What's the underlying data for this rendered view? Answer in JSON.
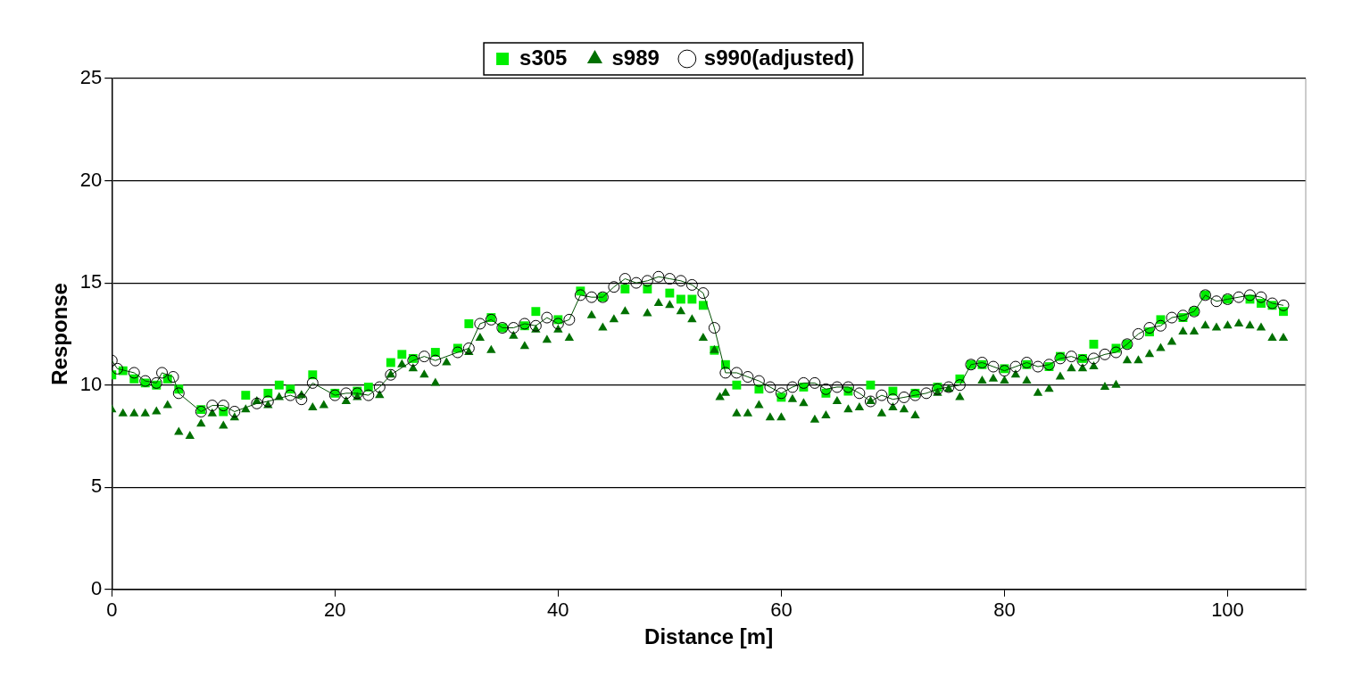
{
  "chart_data": {
    "type": "scatter",
    "xlabel": "Distance [m]",
    "ylabel": "Response",
    "xlim": [
      0,
      107
    ],
    "xticks": [
      0,
      20,
      40,
      60,
      80,
      100
    ],
    "ylim": [
      0,
      25
    ],
    "yticks": [
      0,
      5,
      10,
      15,
      20,
      25
    ],
    "grid": "y",
    "legend": "top",
    "series": [
      {
        "name": "s305",
        "marker": "square",
        "color": "#00ee00",
        "x": [
          0,
          1,
          2,
          3,
          4,
          5,
          6,
          8,
          10,
          12,
          14,
          15,
          16,
          18,
          20,
          22,
          23,
          25,
          26,
          27,
          29,
          31,
          32,
          34,
          35,
          37,
          38,
          40,
          42,
          44,
          46,
          48,
          50,
          51,
          52,
          53,
          54,
          55,
          56,
          58,
          60,
          62,
          64,
          66,
          68,
          70,
          72,
          74,
          76,
          77,
          78,
          80,
          82,
          84,
          85,
          87,
          88,
          90,
          91,
          93,
          94,
          96,
          97,
          98,
          100,
          102,
          103,
          104,
          105
        ],
        "values": [
          10.5,
          10.7,
          10.3,
          10.1,
          10.0,
          10.3,
          9.8,
          8.8,
          8.7,
          9.5,
          9.6,
          10.0,
          9.8,
          10.5,
          9.6,
          9.7,
          9.9,
          11.1,
          11.5,
          11.3,
          11.6,
          11.8,
          13.0,
          13.3,
          12.8,
          12.9,
          13.6,
          13.2,
          14.6,
          14.3,
          14.7,
          14.7,
          14.5,
          14.2,
          14.2,
          13.9,
          11.7,
          11.0,
          10.0,
          9.8,
          9.4,
          9.9,
          9.6,
          9.7,
          10.0,
          9.7,
          9.6,
          9.9,
          10.3,
          11.0,
          11.0,
          10.8,
          11.0,
          10.9,
          11.4,
          11.3,
          12.0,
          11.8,
          12.0,
          12.6,
          13.2,
          13.3,
          13.6,
          14.4,
          14.2,
          14.2,
          14.0,
          13.9,
          13.6
        ]
      },
      {
        "name": "s989",
        "marker": "triangle",
        "color": "#007000",
        "x": [
          0,
          1,
          2,
          3,
          4,
          5,
          6,
          7,
          8,
          9,
          10,
          11,
          12,
          13,
          14,
          15,
          17,
          18,
          19,
          21,
          22,
          24,
          25,
          26,
          27,
          28,
          29,
          30,
          32,
          33,
          34,
          36,
          37,
          38,
          39,
          40,
          41,
          43,
          44,
          45,
          46,
          48,
          49,
          50,
          51,
          52,
          53,
          54,
          54.5,
          55,
          56,
          57,
          58,
          59,
          60,
          61,
          62,
          63,
          64,
          65,
          66,
          67,
          68,
          69,
          70,
          71,
          72,
          74,
          75,
          76,
          78,
          79,
          80,
          81,
          82,
          83,
          84,
          85,
          86,
          87,
          88,
          89,
          90,
          91,
          92,
          93,
          94,
          95,
          96,
          97,
          98,
          99,
          100,
          101,
          102,
          103,
          104,
          105
        ],
        "values": [
          8.8,
          8.6,
          8.6,
          8.6,
          8.7,
          9.0,
          7.7,
          7.5,
          8.1,
          8.6,
          8.0,
          8.4,
          8.8,
          9.2,
          9.0,
          9.4,
          9.5,
          8.9,
          9.0,
          9.2,
          9.4,
          9.5,
          10.5,
          11.0,
          10.8,
          10.5,
          10.1,
          11.1,
          11.6,
          12.3,
          11.7,
          12.4,
          11.9,
          12.7,
          12.2,
          12.7,
          12.3,
          13.4,
          12.8,
          13.2,
          13.6,
          13.5,
          14.0,
          13.9,
          13.6,
          13.2,
          12.3,
          11.7,
          9.4,
          9.6,
          8.6,
          8.6,
          9.0,
          8.4,
          8.4,
          9.3,
          9.1,
          8.3,
          8.5,
          9.2,
          8.8,
          8.9,
          9.2,
          8.6,
          8.9,
          8.8,
          8.5,
          9.6,
          9.8,
          9.4,
          10.2,
          10.3,
          10.2,
          10.5,
          10.2,
          9.6,
          9.8,
          10.4,
          10.8,
          10.8,
          10.9,
          9.9,
          10.0,
          11.2,
          11.2,
          11.5,
          11.8,
          12.1,
          12.6,
          12.6,
          12.9,
          12.8,
          12.9,
          13.0,
          12.9,
          12.8,
          12.3,
          12.3
        ]
      },
      {
        "name": "s990(adjusted)",
        "type": "line",
        "marker": "circle",
        "color": "#005000",
        "x": [
          0,
          0.5,
          2,
          3,
          4,
          4.5,
          5.5,
          6,
          8,
          9,
          10,
          11,
          13,
          14,
          16,
          17,
          18,
          20,
          21,
          22,
          23,
          24,
          25,
          27,
          28,
          29,
          31,
          32,
          33,
          34,
          35,
          36,
          37,
          38,
          39,
          40,
          41,
          42,
          43,
          44,
          45,
          46,
          47,
          48,
          49,
          50,
          51,
          52,
          53,
          54,
          55,
          56,
          57,
          58,
          59,
          60,
          61,
          62,
          63,
          64,
          65,
          66,
          67,
          68,
          69,
          70,
          71,
          72,
          73,
          74,
          75,
          76,
          77,
          78,
          79,
          80,
          81,
          82,
          83,
          84,
          85,
          86,
          87,
          88,
          89,
          90,
          91,
          92,
          93,
          94,
          95,
          96,
          97,
          98,
          99,
          100,
          101,
          102,
          103,
          104,
          105
        ],
        "values": [
          11.2,
          10.8,
          10.6,
          10.2,
          10.1,
          10.6,
          10.4,
          9.6,
          8.7,
          9.0,
          9.0,
          8.7,
          9.1,
          9.2,
          9.5,
          9.3,
          10.1,
          9.5,
          9.6,
          9.6,
          9.5,
          9.9,
          10.5,
          11.2,
          11.4,
          11.2,
          11.6,
          11.8,
          13.0,
          13.2,
          12.8,
          12.8,
          13.0,
          12.9,
          13.3,
          13.0,
          13.2,
          14.4,
          14.3,
          14.3,
          14.8,
          15.2,
          15.0,
          15.1,
          15.3,
          15.2,
          15.1,
          14.9,
          14.5,
          12.8,
          10.6,
          10.6,
          10.4,
          10.2,
          9.9,
          9.6,
          9.9,
          10.1,
          10.1,
          9.8,
          9.9,
          9.9,
          9.6,
          9.2,
          9.5,
          9.3,
          9.4,
          9.5,
          9.6,
          9.8,
          9.9,
          10.0,
          11.0,
          11.1,
          10.9,
          10.7,
          10.9,
          11.1,
          10.9,
          11.0,
          11.3,
          11.4,
          11.2,
          11.3,
          11.5,
          11.6,
          12.0,
          12.5,
          12.8,
          12.9,
          13.3,
          13.4,
          13.6,
          14.4,
          14.1,
          14.2,
          14.3,
          14.4,
          14.3,
          14.0,
          13.9
        ]
      }
    ]
  }
}
